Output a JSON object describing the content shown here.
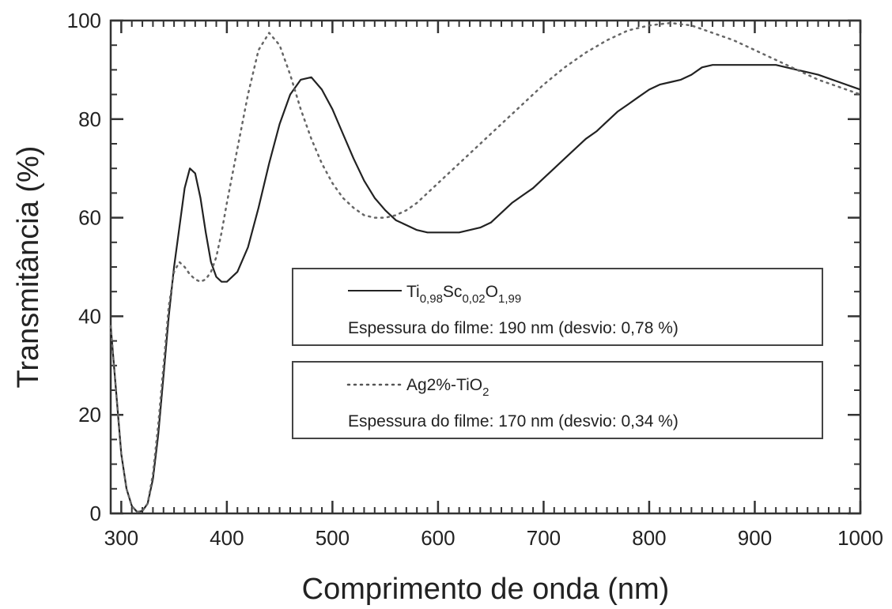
{
  "chart_data": {
    "type": "line",
    "xlabel": "Comprimento de onda (nm)",
    "ylabel": "Transmitância (%)",
    "xlim": [
      290,
      1000
    ],
    "ylim": [
      0,
      100
    ],
    "xticks": [
      "300",
      "400",
      "500",
      "600",
      "700",
      "800",
      "900",
      "1000"
    ],
    "yticks": [
      "0",
      "20",
      "40",
      "60",
      "80",
      "100"
    ],
    "grid": false,
    "legend_placement": "center-right",
    "series": [
      {
        "name_parts": [
          "Ti",
          "0,98",
          "Sc",
          "0,02",
          "O",
          "1,99"
        ],
        "note": "Espessura do filme: 190 nm (desvio: 0,78 %)",
        "style": "solid",
        "x": [
          290,
          295,
          300,
          305,
          310,
          315,
          320,
          325,
          330,
          335,
          340,
          345,
          350,
          355,
          360,
          365,
          370,
          375,
          380,
          385,
          390,
          395,
          400,
          410,
          420,
          430,
          440,
          450,
          460,
          470,
          480,
          490,
          500,
          510,
          520,
          530,
          540,
          550,
          560,
          570,
          580,
          590,
          600,
          610,
          620,
          630,
          640,
          650,
          660,
          670,
          680,
          690,
          700,
          710,
          720,
          730,
          740,
          750,
          760,
          770,
          780,
          790,
          800,
          810,
          820,
          830,
          840,
          850,
          860,
          870,
          880,
          900,
          920,
          940,
          960,
          980,
          1000
        ],
        "y": [
          38,
          25,
          12,
          5,
          1.5,
          0.3,
          0.5,
          2,
          7,
          16,
          28,
          40,
          50,
          58,
          66,
          70,
          69,
          64,
          57,
          51,
          48,
          47,
          47,
          49,
          54,
          62,
          71,
          79,
          85,
          88,
          88.5,
          86,
          82,
          77,
          72,
          67.5,
          64,
          61.5,
          59.5,
          58.5,
          57.5,
          57,
          57,
          57,
          57,
          57.5,
          58,
          59,
          61,
          63,
          64.5,
          66,
          68,
          70,
          72,
          74,
          76,
          77.5,
          79.5,
          81.5,
          83,
          84.5,
          86,
          87,
          87.5,
          88,
          89,
          90.5,
          91,
          91,
          91,
          91,
          91,
          90,
          89,
          87.5,
          86
        ]
      },
      {
        "name_parts": [
          "Ag2%-TiO",
          "2"
        ],
        "note": "Espessura do filme: 170 nm (desvio: 0,34 %)",
        "style": "dotted",
        "x": [
          290,
          295,
          300,
          305,
          310,
          315,
          320,
          325,
          330,
          335,
          340,
          345,
          350,
          355,
          360,
          365,
          370,
          375,
          380,
          385,
          390,
          395,
          400,
          410,
          420,
          430,
          440,
          450,
          460,
          470,
          480,
          490,
          500,
          510,
          520,
          530,
          540,
          550,
          560,
          570,
          580,
          590,
          600,
          620,
          640,
          660,
          680,
          700,
          720,
          740,
          760,
          780,
          800,
          820,
          840,
          860,
          880,
          900,
          920,
          940,
          960,
          980,
          1000
        ],
        "y": [
          38,
          25,
          12,
          5,
          1.5,
          0.3,
          0.5,
          2,
          8,
          18,
          30,
          42,
          49,
          51,
          50,
          48.5,
          47.5,
          47,
          47.5,
          49,
          52,
          57,
          63,
          74,
          85,
          94,
          97.5,
          95,
          89,
          82,
          76,
          71,
          67,
          64,
          62,
          60.5,
          60,
          60,
          60.5,
          61.5,
          63,
          65,
          67,
          71,
          75,
          79,
          83,
          87,
          90.5,
          93.5,
          96,
          98,
          99,
          99.5,
          99,
          97.5,
          96,
          94,
          92,
          90,
          88,
          86.5,
          85
        ]
      }
    ]
  }
}
